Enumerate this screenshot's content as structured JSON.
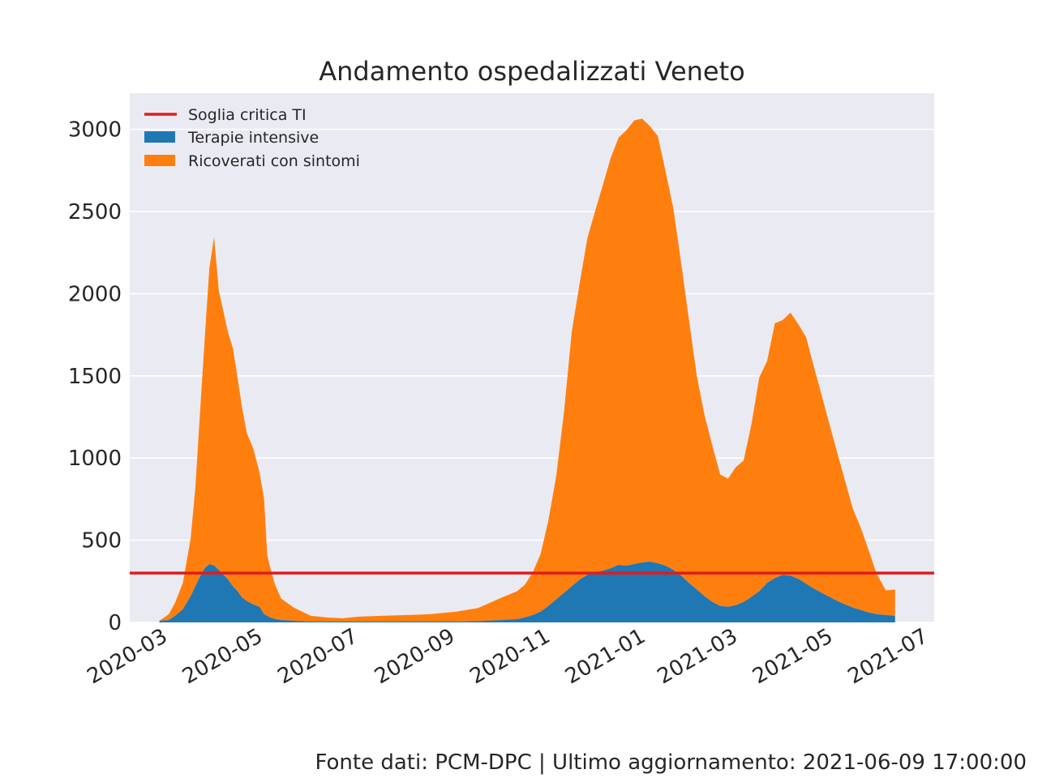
{
  "colors": {
    "background": "#eaeaf2",
    "grid": "#ffffff",
    "ricoverati": "#ff7f0e",
    "terapie": "#1f77b4",
    "soglia": "#e31a1c"
  },
  "footer": "Fonte dati: PCM-DPC | Ultimo aggiornamento: 2021-06-09 17:00:00",
  "chart_data": {
    "type": "area",
    "title": "Andamento ospedalizzati Veneto",
    "xlabel": "",
    "ylabel": "",
    "stacked": true,
    "grid": true,
    "legend_position": "top-left",
    "x_range": [
      "2020-02-05",
      "2021-07-04"
    ],
    "ylim": [
      0,
      3220
    ],
    "x_ticks": [
      "2020-03",
      "2020-05",
      "2020-07",
      "2020-09",
      "2020-11",
      "2021-01",
      "2021-03",
      "2021-05",
      "2021-07"
    ],
    "y_ticks": [
      0,
      500,
      1000,
      1500,
      2000,
      2500,
      3000
    ],
    "threshold": {
      "name": "Soglia critica TI",
      "value": 300
    },
    "legend": [
      "Soglia critica TI",
      "Terapie intensive",
      "Ricoverati con sintomi"
    ],
    "dates": [
      "2020-02-24",
      "2020-03-01",
      "2020-03-05",
      "2020-03-10",
      "2020-03-15",
      "2020-03-18",
      "2020-03-21",
      "2020-03-24",
      "2020-03-27",
      "2020-03-30",
      "2020-04-02",
      "2020-04-05",
      "2020-04-08",
      "2020-04-11",
      "2020-04-14",
      "2020-04-17",
      "2020-04-20",
      "2020-04-24",
      "2020-04-28",
      "2020-05-01",
      "2020-05-03",
      "2020-05-05",
      "2020-05-08",
      "2020-05-12",
      "2020-05-20",
      "2020-05-31",
      "2020-06-10",
      "2020-06-20",
      "2020-07-01",
      "2020-07-15",
      "2020-08-01",
      "2020-08-15",
      "2020-09-01",
      "2020-09-15",
      "2020-10-01",
      "2020-10-10",
      "2020-10-15",
      "2020-10-20",
      "2020-10-25",
      "2020-10-30",
      "2020-11-04",
      "2020-11-09",
      "2020-11-14",
      "2020-11-19",
      "2020-11-24",
      "2020-11-29",
      "2020-12-04",
      "2020-12-09",
      "2020-12-14",
      "2020-12-19",
      "2020-12-24",
      "2020-12-29",
      "2021-01-03",
      "2021-01-08",
      "2021-01-13",
      "2021-01-18",
      "2021-01-23",
      "2021-01-28",
      "2021-02-02",
      "2021-02-07",
      "2021-02-12",
      "2021-02-17",
      "2021-02-22",
      "2021-02-27",
      "2021-03-04",
      "2021-03-09",
      "2021-03-14",
      "2021-03-19",
      "2021-03-24",
      "2021-03-29",
      "2021-04-03",
      "2021-04-08",
      "2021-04-13",
      "2021-04-18",
      "2021-04-23",
      "2021-04-28",
      "2021-05-03",
      "2021-05-08",
      "2021-05-13",
      "2021-05-18",
      "2021-05-23",
      "2021-05-28",
      "2021-06-03",
      "2021-06-09"
    ],
    "series": [
      {
        "name": "Terapie intensive",
        "values": [
          10,
          15,
          40,
          80,
          160,
          220,
          280,
          330,
          355,
          345,
          320,
          290,
          260,
          220,
          190,
          150,
          130,
          110,
          95,
          50,
          40,
          30,
          20,
          15,
          10,
          5,
          5,
          5,
          5,
          5,
          5,
          5,
          5,
          8,
          15,
          20,
          30,
          45,
          65,
          100,
          140,
          180,
          220,
          260,
          290,
          305,
          315,
          330,
          350,
          345,
          355,
          365,
          370,
          360,
          345,
          320,
          285,
          240,
          200,
          160,
          125,
          100,
          95,
          105,
          125,
          155,
          190,
          240,
          270,
          290,
          285,
          265,
          235,
          205,
          180,
          155,
          130,
          110,
          90,
          75,
          60,
          50,
          45,
          40
        ]
      },
      {
        "name": "Ricoverati con sintomi",
        "values": [
          0,
          35,
          80,
          160,
          350,
          600,
          1000,
          1400,
          1800,
          2000,
          1700,
          1600,
          1500,
          1450,
          1300,
          1150,
          1020,
          950,
          820,
          700,
          370,
          300,
          210,
          130,
          80,
          35,
          25,
          20,
          30,
          35,
          40,
          45,
          60,
          80,
          140,
          170,
          200,
          260,
          350,
          520,
          750,
          1100,
          1550,
          1800,
          2050,
          2200,
          2350,
          2500,
          2600,
          2650,
          2700,
          2700,
          2650,
          2600,
          2400,
          2200,
          1900,
          1600,
          1300,
          1100,
          950,
          800,
          780,
          840,
          860,
          1050,
          1300,
          1350,
          1550,
          1550,
          1600,
          1550,
          1500,
          1350,
          1200,
          1050,
          900,
          750,
          600,
          500,
          380,
          250,
          150,
          160
        ]
      }
    ]
  }
}
